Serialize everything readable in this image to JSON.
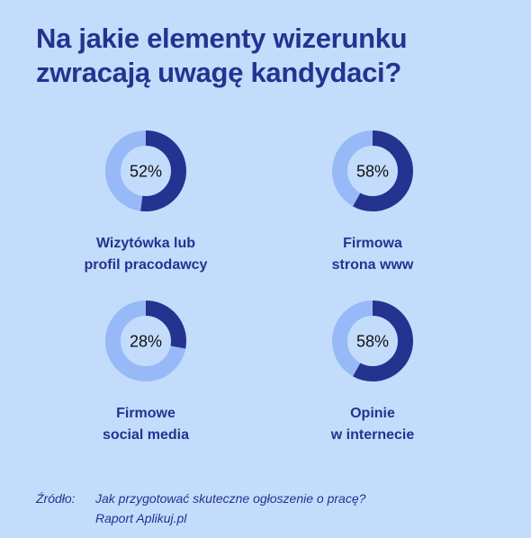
{
  "title": {
    "line1": "Na jakie elementy wizerunku",
    "line2": "zwracają uwagę kandydaci?"
  },
  "colors": {
    "background": "#c3dcfc",
    "filled": "#24338f",
    "remaining": "#97b9f7",
    "text": "#24338f"
  },
  "chart_data": {
    "type": "pie",
    "style": "donut",
    "title": "Na jakie elementy wizerunku zwracają uwagę kandydaci?",
    "unit": "%",
    "items": [
      {
        "value": 52,
        "value_label": "52%",
        "label_lines": [
          "Wizytówka lub",
          "profil pracodawcy"
        ]
      },
      {
        "value": 58,
        "value_label": "58%",
        "label_lines": [
          "Firmowa",
          "strona www"
        ]
      },
      {
        "value": 28,
        "value_label": "28%",
        "label_lines": [
          "Firmowe",
          "social media"
        ]
      },
      {
        "value": 58,
        "value_label": "58%",
        "label_lines": [
          "Opinie",
          "w internecie"
        ]
      }
    ]
  },
  "source": {
    "prefix": "Źródło:",
    "line1": "Jak przygotować skuteczne ogłoszenie o pracę?",
    "line2": "Raport Aplikuj.pl"
  }
}
